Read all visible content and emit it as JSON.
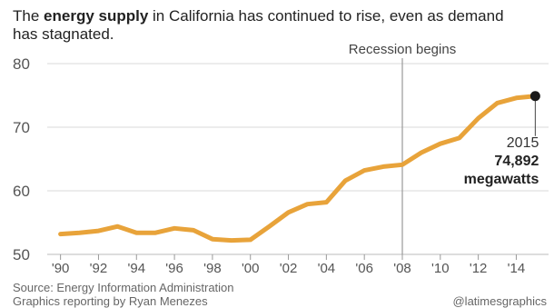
{
  "title": {
    "prefix": "The ",
    "bold": "energy supply",
    "suffix": " in California has continued to rise, even as demand has stagnated."
  },
  "annotation": {
    "recession_label": "Recession begins",
    "recession_year": 2008
  },
  "callout": {
    "year": "2015",
    "value": "74,892",
    "unit": "megawatts"
  },
  "footer": {
    "source": "Source: Energy Information Administration",
    "credit": "Graphics reporting by Ryan Menezes",
    "handle": "@latimesgraphics"
  },
  "colors": {
    "line": "#e8a33a",
    "grid": "#d9d9d9",
    "recession_line": "#999999",
    "endpoint": "#1a1a1a"
  },
  "chart_data": {
    "type": "line",
    "title": "The energy supply in California has continued to rise, even as demand has stagnated.",
    "xlabel": "",
    "ylabel": "",
    "xlim": [
      1989.3,
      2015.7
    ],
    "ylim": [
      50,
      80
    ],
    "yticks": [
      50,
      60,
      70,
      80
    ],
    "xticks": [
      1990,
      1992,
      1994,
      1996,
      1998,
      2000,
      2002,
      2004,
      2006,
      2008,
      2010,
      2012,
      2014
    ],
    "xtick_labels": [
      "'90",
      "'92",
      "'94",
      "'96",
      "'98",
      "'00",
      "'02",
      "'04",
      "'06",
      "'08",
      "'10",
      "'12",
      "'14"
    ],
    "grid": "horizontal",
    "series": [
      {
        "x": [
          1990,
          1991,
          1992,
          1993,
          1994,
          1995,
          1996,
          1997,
          1998,
          1999,
          2000,
          2001,
          2002,
          2003,
          2004,
          2005,
          2006,
          2007,
          2008,
          2009,
          2010,
          2011,
          2012,
          2013,
          2014,
          2015
        ],
        "values": [
          53.2,
          53.4,
          53.7,
          54.4,
          53.4,
          53.4,
          54.1,
          53.8,
          52.4,
          52.2,
          52.3,
          54.4,
          56.6,
          57.9,
          58.2,
          61.6,
          63.2,
          63.8,
          64.1,
          66.0,
          67.4,
          68.3,
          71.4,
          73.8,
          74.6,
          74.892
        ]
      }
    ]
  }
}
